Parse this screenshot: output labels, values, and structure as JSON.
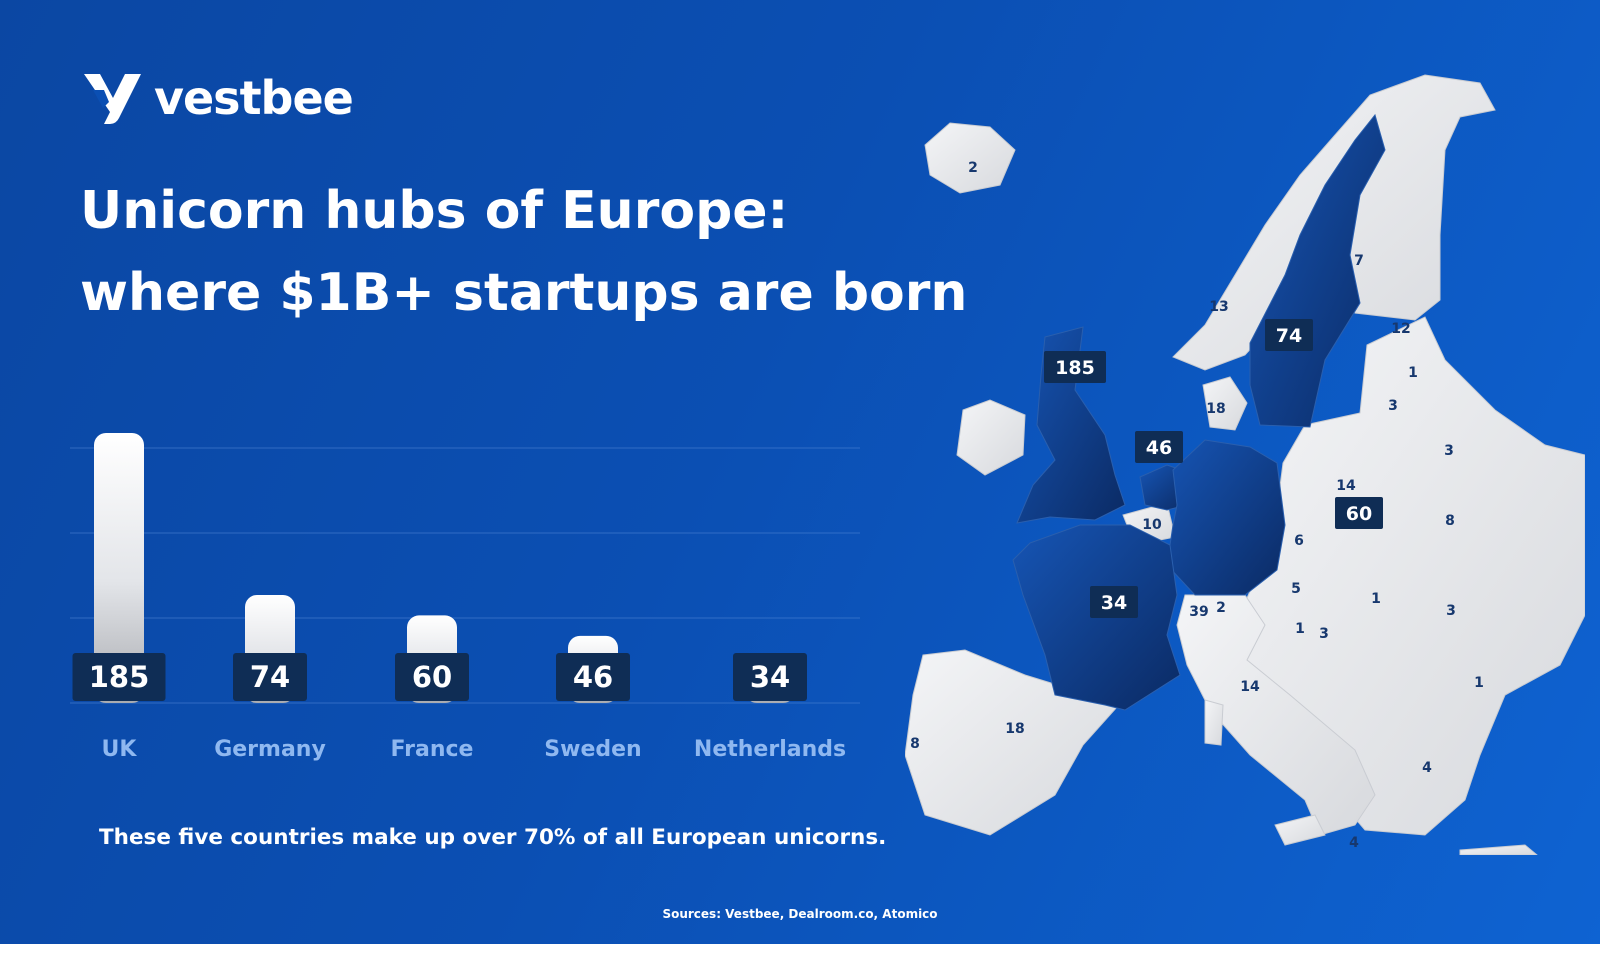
{
  "brand": {
    "name": "vestbee",
    "icon": "vestbee-logo-icon"
  },
  "title": {
    "line1": "Unicorn hubs of Europe:",
    "line2": "where $1B+ startups are born"
  },
  "chart_data": {
    "type": "bar",
    "categories": [
      "UK",
      "Germany",
      "France",
      "Sweden",
      "Netherlands"
    ],
    "values": [
      185,
      74,
      60,
      46,
      34
    ],
    "ylim": [
      0,
      185
    ],
    "grid": true,
    "legend": "none"
  },
  "note": "These five countries make up over 70% of all European unicorns.",
  "sources": "Sources: Vestbee, Dealroom.co, Atomico",
  "map": {
    "highlighted_countries": [
      {
        "country": "UK",
        "count": "185"
      },
      {
        "country": "Germany",
        "count": "74"
      },
      {
        "country": "France",
        "count": "60"
      },
      {
        "country": "Sweden",
        "count": "46"
      },
      {
        "country": "Netherlands",
        "count": "34"
      }
    ],
    "other_labels": [
      "2",
      "7",
      "13",
      "12",
      "1",
      "3",
      "18",
      "3",
      "14",
      "8",
      "10",
      "6",
      "5",
      "1",
      "3",
      "39",
      "2",
      "1",
      "3",
      "14",
      "1",
      "18",
      "8",
      "4",
      "4"
    ]
  },
  "colors": {
    "background": "#0b4fb3",
    "highlight": "#0d2f6a",
    "label_bg": "#0f2d55",
    "land": "#e9ebee",
    "axis_label": "#8fb8f0",
    "map_number": "#17386e"
  }
}
